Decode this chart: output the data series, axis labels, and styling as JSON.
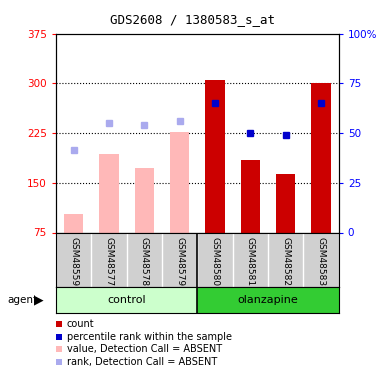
{
  "title": "GDS2608 / 1380583_s_at",
  "samples": [
    "GSM48559",
    "GSM48577",
    "GSM48578",
    "GSM48579",
    "GSM48580",
    "GSM48581",
    "GSM48582",
    "GSM48583"
  ],
  "bar_values": [
    null,
    null,
    null,
    null,
    305,
    185,
    163,
    300
  ],
  "bar_absent_values": [
    103,
    193,
    173,
    227,
    null,
    null,
    null,
    null
  ],
  "rank_values_left": [
    null,
    null,
    null,
    null,
    270,
    225,
    222,
    270
  ],
  "rank_absent_values_left": [
    200,
    240,
    237,
    243,
    null,
    null,
    null,
    null
  ],
  "ylim_left": [
    75,
    375
  ],
  "ylim_right": [
    0,
    100
  ],
  "yticks_left": [
    75,
    150,
    225,
    300,
    375
  ],
  "yticks_right": [
    0,
    25,
    50,
    75,
    100
  ],
  "hgrid_at": [
    150,
    225,
    300
  ],
  "bar_color": "#cc0000",
  "bar_absent_color": "#ffb8b8",
  "rank_color": "#0000cc",
  "rank_absent_color": "#aaaaee",
  "control_bg_light": "#ccffcc",
  "olanzapine_bg": "#33cc33",
  "sample_bg": "#d0d0d0",
  "legend_items": [
    {
      "label": "count",
      "color": "#cc0000"
    },
    {
      "label": "percentile rank within the sample",
      "color": "#0000cc"
    },
    {
      "label": "value, Detection Call = ABSENT",
      "color": "#ffb8b8"
    },
    {
      "label": "rank, Detection Call = ABSENT",
      "color": "#aaaaee"
    }
  ]
}
